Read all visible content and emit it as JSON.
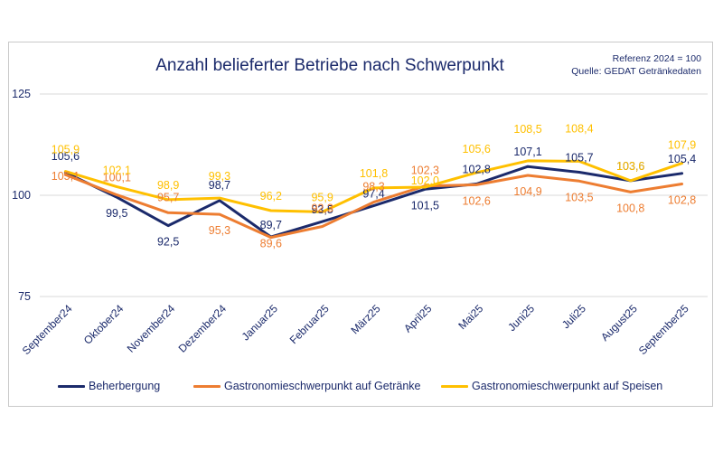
{
  "chart_data": {
    "type": "line",
    "title": "Anzahl belieferter Betriebe nach Schwerpunkt",
    "reference": "Referenz 2024 = 100",
    "source": "Quelle: GEDAT Getränkedaten",
    "categories": [
      "September24",
      "Oktober24",
      "November24",
      "Dezember24",
      "Januar25",
      "Februar25",
      "März25",
      "April25",
      "Mai25",
      "Juni25",
      "Juli25",
      "August25",
      "September25"
    ],
    "ylim": [
      75,
      125
    ],
    "yticks": [
      "75",
      "100",
      "125"
    ],
    "grid": true,
    "legend_position": "bottom",
    "series": [
      {
        "name": "Beherbergung",
        "color": "#1b2a6b",
        "values": [
          105.6,
          99.5,
          92.5,
          98.7,
          89.7,
          93.5,
          97.4,
          101.5,
          102.8,
          107.1,
          105.7,
          103.6,
          105.4
        ],
        "labels": [
          "105,6",
          "99,5",
          "92,5",
          "98,7",
          "89,7",
          "93,5",
          "97,4",
          "101,5",
          "102,8",
          "107,1",
          "105,7",
          "103,6",
          "105,4"
        ]
      },
      {
        "name": "Gastronomieschwerpunkt auf Getränke",
        "color": "#ed7d31",
        "values": [
          105.1,
          100.1,
          95.7,
          95.3,
          89.6,
          92.3,
          98.3,
          102.3,
          102.6,
          104.9,
          103.5,
          100.8,
          102.8
        ],
        "labels": [
          "105,1",
          "100,1",
          "95,7",
          "95,3",
          "89,6",
          "92,3",
          "98,3",
          "102,3",
          "102,6",
          "104,9",
          "103,5",
          "100,8",
          "102,8"
        ]
      },
      {
        "name": "Gastronomieschwerpunkt auf Speisen",
        "color": "#ffc000",
        "values": [
          105.9,
          102.1,
          98.9,
          99.3,
          96.2,
          95.9,
          101.8,
          102.0,
          105.6,
          108.5,
          108.4,
          103.6,
          107.9
        ],
        "labels": [
          "105,9",
          "102,1",
          "98,9",
          "99,3",
          "96,2",
          "95,9",
          "101,8",
          "102,0",
          "105,6",
          "108,5",
          "108,4",
          "103,6",
          "107,9"
        ]
      }
    ]
  }
}
